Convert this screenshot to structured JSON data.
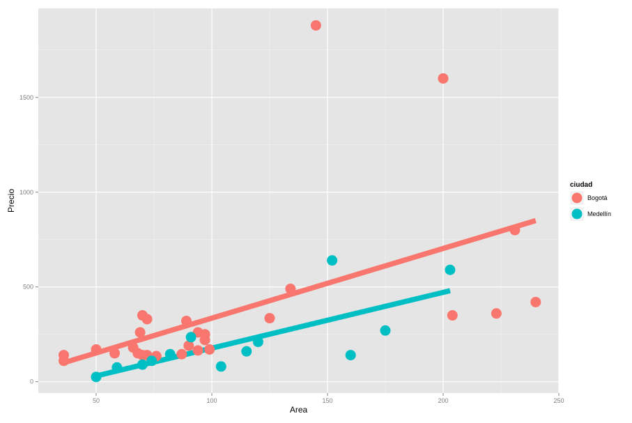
{
  "chart_data": {
    "type": "scatter",
    "title": "",
    "xlabel": "Area",
    "ylabel": "Precio",
    "xlim": [
      25,
      250
    ],
    "ylim": [
      -60,
      1970
    ],
    "x_ticks": [
      50,
      100,
      150,
      200,
      250
    ],
    "y_ticks": [
      0,
      500,
      1000,
      1500
    ],
    "grid": true,
    "legend": {
      "title": "ciudad",
      "placement": "right"
    },
    "series": [
      {
        "name": "Bogotá",
        "color": "#F8766D",
        "points": [
          [
            36,
            140
          ],
          [
            36,
            110
          ],
          [
            50,
            170
          ],
          [
            58,
            150
          ],
          [
            66,
            180
          ],
          [
            68,
            150
          ],
          [
            69,
            260
          ],
          [
            70,
            350
          ],
          [
            70,
            140
          ],
          [
            72,
            330
          ],
          [
            72,
            140
          ],
          [
            76,
            135
          ],
          [
            87,
            145
          ],
          [
            89,
            320
          ],
          [
            90,
            190
          ],
          [
            94,
            260
          ],
          [
            94,
            165
          ],
          [
            97,
            250
          ],
          [
            97,
            220
          ],
          [
            99,
            170
          ],
          [
            125,
            335
          ],
          [
            134,
            490
          ],
          [
            145,
            1880
          ],
          [
            200,
            1600
          ],
          [
            204,
            350
          ],
          [
            223,
            360
          ],
          [
            231,
            800
          ],
          [
            240,
            420
          ]
        ],
        "trend": [
          [
            36,
            100
          ],
          [
            240,
            850
          ]
        ]
      },
      {
        "name": "Medellín",
        "color": "#00BFC4",
        "points": [
          [
            50,
            25
          ],
          [
            59,
            75
          ],
          [
            70,
            90
          ],
          [
            74,
            110
          ],
          [
            82,
            145
          ],
          [
            91,
            235
          ],
          [
            104,
            80
          ],
          [
            115,
            160
          ],
          [
            120,
            210
          ],
          [
            152,
            640
          ],
          [
            160,
            140
          ],
          [
            175,
            270
          ],
          [
            203,
            590
          ]
        ],
        "trend": [
          [
            50,
            30
          ],
          [
            203,
            480
          ]
        ]
      }
    ]
  }
}
